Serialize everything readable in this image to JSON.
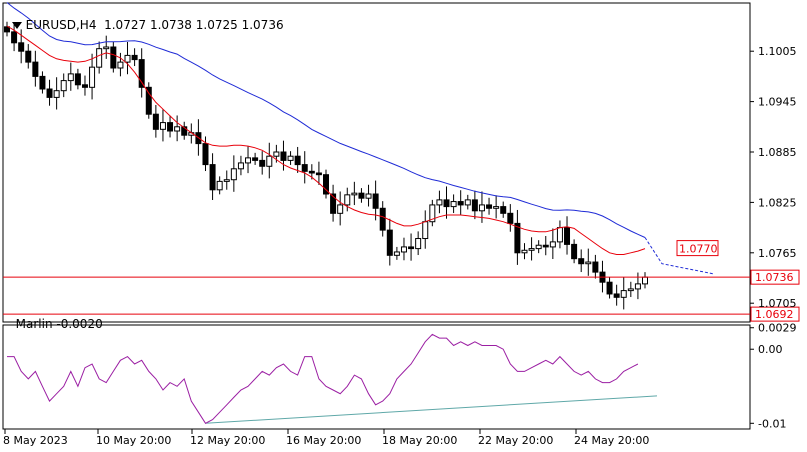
{
  "header": {
    "symbol": "EURUSD,H4",
    "open": "1.0727",
    "high": "1.0738",
    "low": "1.0725",
    "close": "1.0736"
  },
  "indicator": {
    "name": "Marlin",
    "value": "-0.0020"
  },
  "colors": {
    "bull": "#ffffff",
    "bear": "#000000",
    "ma_fast": "#e8000b",
    "ma_slow": "#1f2bd6",
    "level": "#e8000b",
    "osc": "#9b1fa3",
    "trend": "#5fa8a8",
    "axis": "#000000"
  },
  "chart_data": [
    {
      "type": "candlestick",
      "symbol": "EURUSD,H4",
      "ylim": [
        1.0685,
        1.106
      ],
      "y_ticks": [
        "1.1005",
        "1.0945",
        "1.0885",
        "1.0825",
        "1.0765",
        "1.0705"
      ],
      "x_ticks": [
        "8 May 2023",
        "10 May 20:00",
        "12 May 20:00",
        "16 May 20:00",
        "18 May 20:00",
        "22 May 20:00",
        "24 May 20:00"
      ],
      "horizontal_levels": [
        {
          "value": 1.0736,
          "label": "1.0736"
        },
        {
          "value": 1.0692,
          "label": "1.0692"
        }
      ],
      "price_tags": [
        {
          "value": 1.077,
          "label": "1.0770"
        }
      ],
      "close": [
        1.1028,
        1.1015,
        1.1005,
        1.0992,
        1.0975,
        1.096,
        1.095,
        1.0958,
        1.097,
        1.0978,
        1.0965,
        1.0962,
        1.0986,
        1.1008,
        1.101,
        1.0985,
        1.0992,
        1.1,
        1.0995,
        1.0962,
        1.093,
        1.0912,
        1.092,
        1.091,
        1.0915,
        1.0905,
        1.0908,
        1.0895,
        1.087,
        1.084,
        1.085,
        1.0852,
        1.0865,
        1.0872,
        1.0878,
        1.0875,
        1.0868,
        1.088,
        1.0885,
        1.0875,
        1.088,
        1.087,
        1.0862,
        1.086,
        1.0858,
        1.0835,
        1.0812,
        1.0822,
        1.0834,
        1.0836,
        1.083,
        1.0835,
        1.0818,
        1.0792,
        1.0762,
        1.0766,
        1.0772,
        1.077,
        1.0782,
        1.0802,
        1.0822,
        1.0828,
        1.082,
        1.0826,
        1.0822,
        1.0828,
        1.0815,
        1.0822,
        1.0818,
        1.082,
        1.0812,
        1.08,
        1.0765,
        1.0768,
        1.077,
        1.0774,
        1.0772,
        1.0778,
        1.0795,
        1.0775,
        1.0758,
        1.0752,
        1.0754,
        1.0742,
        1.073,
        1.0716,
        1.0712,
        1.072,
        1.0722,
        1.0728,
        1.0736
      ],
      "ma_fast": [
        1.1035,
        1.103,
        1.1024,
        1.1018,
        1.1012,
        1.1006,
        1.1,
        1.0996,
        1.0994,
        1.0993,
        1.0992,
        1.0993,
        1.0996,
        1.1,
        1.1003,
        1.1001,
        1.0997,
        1.099,
        1.098,
        1.0968,
        1.0955,
        1.0944,
        1.0936,
        1.0928,
        1.092,
        1.0914,
        1.0908,
        1.0902,
        1.0896,
        1.0893,
        1.0892,
        1.0892,
        1.0893,
        1.0893,
        1.0892,
        1.089,
        1.0887,
        1.0882,
        1.0876,
        1.087,
        1.0866,
        1.0863,
        1.086,
        1.0855,
        1.0848,
        1.084,
        1.0832,
        1.0825,
        1.082,
        1.0816,
        1.0813,
        1.0811,
        1.081,
        1.0808,
        1.0804,
        1.08,
        1.0797,
        1.0797,
        1.0799,
        1.0802,
        1.0805,
        1.0808,
        1.081,
        1.081,
        1.081,
        1.0809,
        1.0808,
        1.0807,
        1.0806,
        1.0804,
        1.0802,
        1.0799,
        1.0796,
        1.0793,
        1.0791,
        1.079,
        1.079,
        1.0792,
        1.0795,
        1.0796,
        1.0794,
        1.0788,
        1.0782,
        1.0776,
        1.077,
        1.0765,
        1.0763,
        1.0763,
        1.0765,
        1.0767,
        1.077
      ],
      "ma_slow_projection": [
        1.0752,
        1.0748,
        1.0744,
        1.074
      ]
    },
    {
      "type": "line",
      "name": "Marlin",
      "ylim": [
        -0.0105,
        0.003
      ],
      "y_ticks": [
        "0.0029",
        "0.00",
        "-0.01"
      ],
      "values": [
        -0.001,
        -0.001,
        -0.003,
        -0.004,
        -0.003,
        -0.005,
        -0.007,
        -0.006,
        -0.005,
        -0.003,
        -0.005,
        -0.0025,
        -0.002,
        -0.004,
        -0.0045,
        -0.003,
        -0.0015,
        -0.001,
        -0.002,
        -0.0015,
        -0.003,
        -0.004,
        -0.0055,
        -0.0045,
        -0.005,
        -0.004,
        -0.007,
        -0.0085,
        -0.01,
        -0.0095,
        -0.0085,
        -0.0075,
        -0.0065,
        -0.0055,
        -0.005,
        -0.004,
        -0.003,
        -0.0035,
        -0.0025,
        -0.002,
        -0.003,
        -0.0035,
        -0.001,
        -0.001,
        -0.004,
        -0.005,
        -0.0055,
        -0.006,
        -0.005,
        -0.0035,
        -0.004,
        -0.006,
        -0.0075,
        -0.007,
        -0.006,
        -0.004,
        -0.003,
        -0.002,
        -0.0005,
        0.001,
        0.002,
        0.0015,
        0.0015,
        0.0005,
        0.001,
        0.0005,
        0.001,
        0.0005,
        0.0005,
        0.0005,
        0.0,
        -0.002,
        -0.003,
        -0.003,
        -0.0025,
        -0.002,
        -0.0015,
        -0.002,
        -0.001,
        -0.002,
        -0.003,
        -0.0035,
        -0.003,
        -0.004,
        -0.0045,
        -0.0045,
        -0.004,
        -0.003,
        -0.0025,
        -0.002
      ],
      "trendline": [
        -0.01,
        -0.0063
      ]
    }
  ]
}
